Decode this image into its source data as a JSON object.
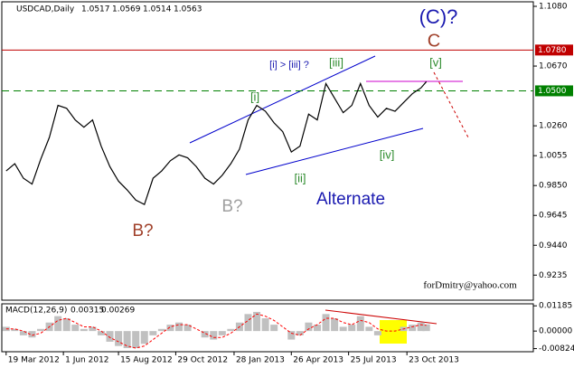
{
  "chart_data": [
    {
      "type": "line",
      "title": "USDCAD,Daily",
      "ohlc": [
        "1.0517",
        "1.0569",
        "1.0514",
        "1.0563"
      ],
      "x": [
        0,
        8,
        16,
        24,
        32,
        40,
        48,
        56,
        64,
        72,
        80,
        88,
        96,
        104,
        112,
        120,
        128,
        136,
        144,
        152,
        160,
        168,
        176,
        184,
        192,
        200,
        208,
        216,
        224,
        232,
        240,
        248,
        256,
        264,
        272,
        280,
        288,
        296,
        304,
        312,
        320,
        328,
        336,
        344,
        352,
        360,
        368,
        376,
        384,
        389
      ],
      "series": [
        {
          "name": "USDCAD",
          "color": "#000000",
          "values": [
            0.995,
            1.0,
            0.99,
            0.986,
            1.003,
            1.018,
            1.04,
            1.038,
            1.03,
            1.025,
            1.03,
            1.012,
            0.998,
            0.988,
            0.982,
            0.975,
            0.972,
            0.99,
            0.995,
            1.002,
            1.006,
            1.004,
            0.998,
            0.99,
            0.986,
            0.992,
            1.0,
            1.01,
            1.03,
            1.04,
            1.036,
            1.028,
            1.022,
            1.008,
            1.012,
            1.034,
            1.03,
            1.055,
            1.045,
            1.035,
            1.04,
            1.055,
            1.04,
            1.032,
            1.038,
            1.036,
            1.042,
            1.048,
            1.052,
            1.0563
          ]
        }
      ],
      "xlim": [
        -4,
        488
      ],
      "ylim": [
        0.9063,
        1.1111
      ],
      "xticks": [
        {
          "value": 0,
          "label": "19 Mar 2012"
        },
        {
          "value": 53,
          "label": "1 Jun 2012"
        },
        {
          "value": 104,
          "label": "15 Aug 2012"
        },
        {
          "value": 157,
          "label": "29 Oct 2012"
        },
        {
          "value": 211,
          "label": "28 Jan 2013"
        },
        {
          "value": 264,
          "label": "26 Apr 2013"
        },
        {
          "value": 317,
          "label": "25 Jul 2013"
        },
        {
          "value": 371,
          "label": "23 Oct 2013"
        }
      ],
      "yticks": [
        {
          "value": 1.108,
          "label": "1.1080"
        },
        {
          "value": 1.067,
          "label": "1.0670"
        },
        {
          "value": 1.026,
          "label": "1.0260"
        },
        {
          "value": 1.0055,
          "label": "1.0055"
        },
        {
          "value": 0.985,
          "label": "0.9850"
        },
        {
          "value": 0.9645,
          "label": "0.9645"
        },
        {
          "value": 0.944,
          "label": "0.9440"
        },
        {
          "value": 0.9235,
          "label": "0.9235"
        }
      ],
      "levels": [
        {
          "value": 1.078,
          "label": "1.0780",
          "color": "#c00000"
        },
        {
          "value": 1.05,
          "label": "1.0500",
          "color": "#008000"
        }
      ],
      "annotations": [
        "(C)?",
        "C",
        "[v]",
        "[iii]",
        "[i] > [iii] ?",
        "[i]",
        "[ii]",
        "[iv]",
        "Alternate",
        "B?",
        "B?",
        "forDmitry@yahoo.com"
      ]
    },
    {
      "type": "bar",
      "title": "MACD(12,26,9)",
      "readout": [
        "0.00315",
        "0.00269"
      ],
      "series": [
        {
          "name": "MACD",
          "color": "#c0c0c0",
          "values": [
            0.002,
            0.001,
            -0.002,
            -0.003,
            0.001,
            0.004,
            0.007,
            0.006,
            0.003,
            0.001,
            0.002,
            -0.002,
            -0.005,
            -0.007,
            -0.008,
            -0.008,
            -0.006,
            -0.002,
            0.001,
            0.003,
            0.004,
            0.003,
            0.0,
            -0.003,
            -0.004,
            -0.002,
            0.001,
            0.004,
            0.008,
            0.009,
            0.006,
            0.003,
            0.0,
            -0.004,
            -0.002,
            0.004,
            0.003,
            0.008,
            0.006,
            0.002,
            0.003,
            0.007,
            0.002,
            -0.002,
            0.0,
            0.0,
            0.002,
            0.003,
            0.004,
            0.00315
          ]
        },
        {
          "name": "Signal",
          "color": "#ff0000",
          "values": [
            0.001,
            0.001,
            0.0,
            -0.002,
            -0.001,
            0.002,
            0.005,
            0.006,
            0.004,
            0.002,
            0.002,
            0.0,
            -0.003,
            -0.005,
            -0.007,
            -0.008,
            -0.007,
            -0.004,
            -0.001,
            0.002,
            0.003,
            0.003,
            0.001,
            -0.001,
            -0.003,
            -0.003,
            -0.001,
            0.002,
            0.005,
            0.008,
            0.007,
            0.005,
            0.002,
            -0.001,
            -0.002,
            0.001,
            0.003,
            0.006,
            0.006,
            0.004,
            0.003,
            0.005,
            0.004,
            0.001,
            0.0,
            0.0,
            0.001,
            0.002,
            0.003,
            0.00269
          ]
        }
      ],
      "ylim": [
        -0.0097,
        0.0128
      ],
      "yticks": [
        {
          "value": 0.01185,
          "label": "0.01185"
        },
        {
          "value": 0,
          "label": "0.00000"
        },
        {
          "value": -0.00824,
          "label": "-0.00824"
        }
      ]
    }
  ]
}
